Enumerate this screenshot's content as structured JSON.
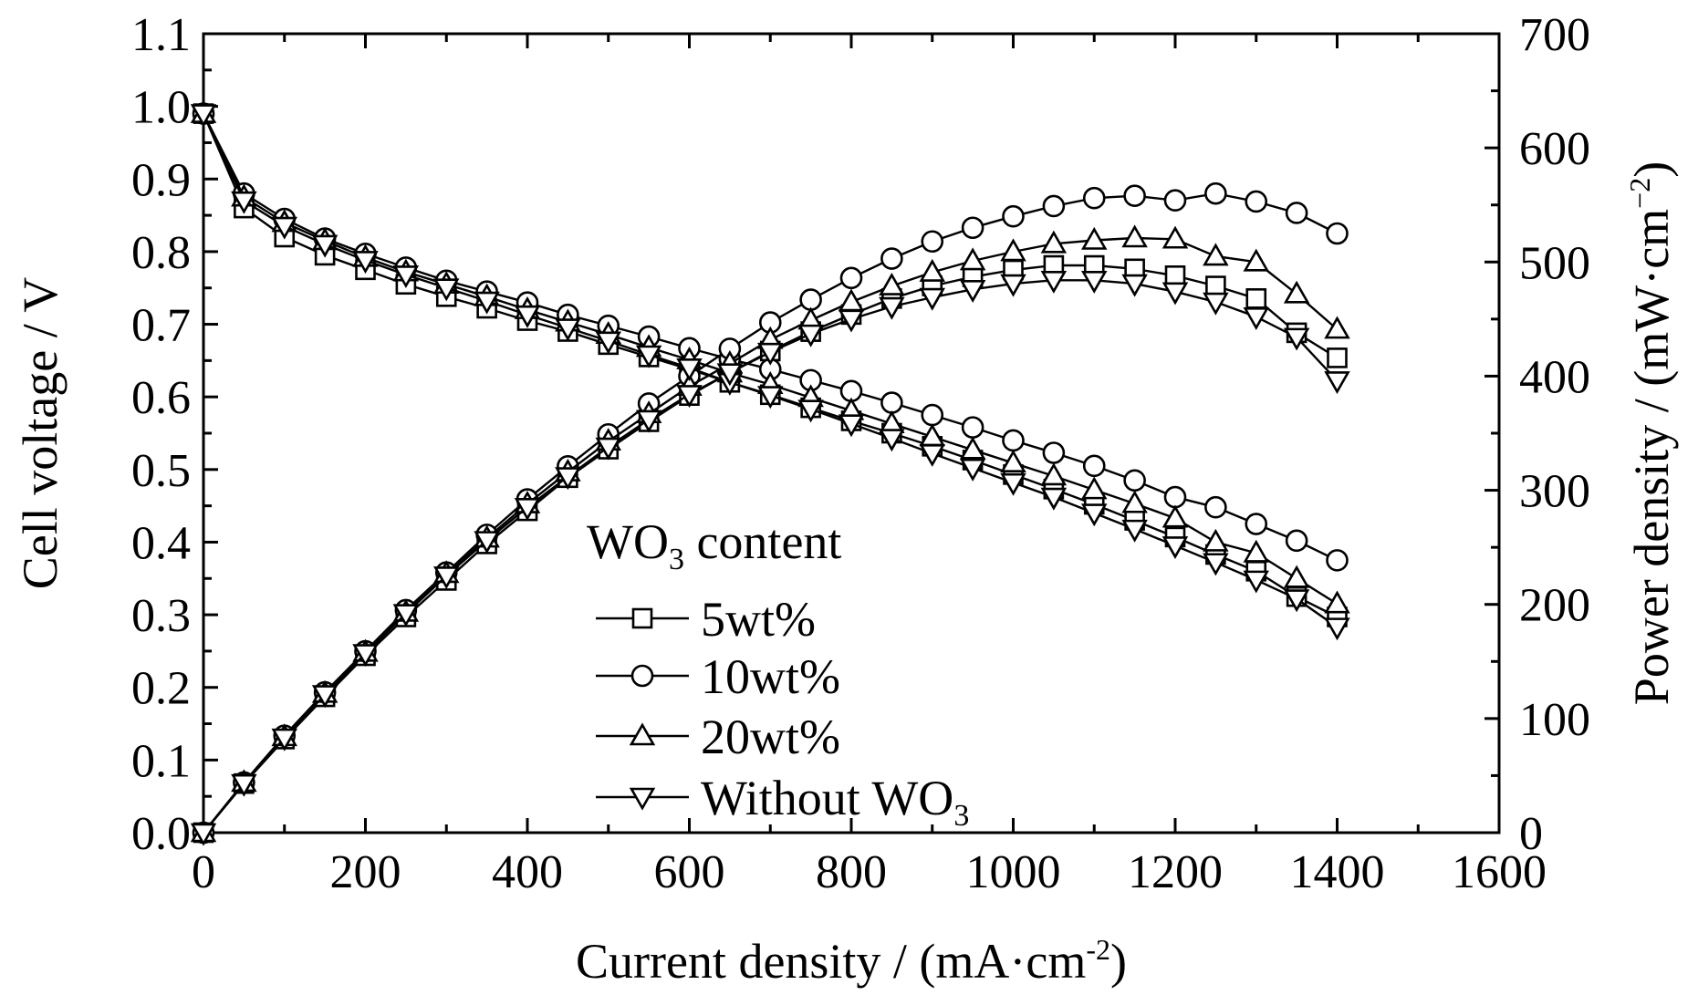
{
  "chart_data": {
    "type": "line",
    "xlabel": "Current density / (mA·cm",
    "xlabel_sup": "-2",
    "xlabel_end": ")",
    "ylabel_left": "Cell voltage / V",
    "ylabel_right": "Power density / (mW·cm",
    "ylabel_right_sup": "−2",
    "ylabel_right_end": ")",
    "xlim": [
      0,
      1600
    ],
    "ylim_left": [
      0.0,
      1.1
    ],
    "ylim_right": [
      0,
      700
    ],
    "x_ticks": [
      0,
      200,
      400,
      600,
      800,
      1000,
      1200,
      1400,
      1600
    ],
    "x_tick_labels": [
      "0",
      "200",
      "400",
      "600",
      "800",
      "1000",
      "1200",
      "1400",
      "1600"
    ],
    "y_left_ticks": [
      0.0,
      0.1,
      0.2,
      0.3,
      0.4,
      0.5,
      0.6,
      0.7,
      0.8,
      0.9,
      1.0,
      1.1
    ],
    "y_left_tick_labels": [
      "0.0",
      "0.1",
      "0.2",
      "0.3",
      "0.4",
      "0.5",
      "0.6",
      "0.7",
      "0.8",
      "0.9",
      "1.0",
      "1.1"
    ],
    "y_right_ticks": [
      0,
      100,
      200,
      300,
      400,
      500,
      600,
      700
    ],
    "y_right_tick_labels": [
      "0",
      "100",
      "200",
      "300",
      "400",
      "500",
      "600",
      "700"
    ],
    "legend_title": "WO",
    "legend_title_sub": "3",
    "legend_title_end": " content",
    "legend_position": "center",
    "grid": false,
    "x": [
      0,
      50,
      100,
      150,
      200,
      250,
      300,
      350,
      400,
      450,
      500,
      550,
      600,
      650,
      700,
      750,
      800,
      850,
      900,
      950,
      1000,
      1050,
      1100,
      1150,
      1200,
      1250,
      1300,
      1350,
      1400
    ],
    "series": [
      {
        "name": "5wt%",
        "marker": "square",
        "voltage": [
          0.99,
          0.86,
          0.82,
          0.795,
          0.775,
          0.755,
          0.738,
          0.722,
          0.705,
          0.69,
          0.672,
          0.655,
          0.638,
          0.62,
          0.603,
          0.585,
          0.567,
          0.55,
          0.532,
          0.513,
          0.493,
          0.473,
          0.452,
          0.43,
          0.407,
          0.383,
          0.36,
          0.325,
          0.297
        ],
        "power": [
          0,
          43,
          82,
          119,
          155,
          189,
          221,
          253,
          282,
          311,
          336,
          360,
          383,
          403,
          422,
          439,
          454,
          468,
          479,
          487,
          493,
          497,
          497,
          494,
          488,
          479,
          468,
          438,
          416
        ]
      },
      {
        "name": "10wt%",
        "marker": "circle",
        "voltage": [
          0.99,
          0.88,
          0.845,
          0.818,
          0.797,
          0.778,
          0.76,
          0.745,
          0.73,
          0.713,
          0.698,
          0.683,
          0.667,
          0.652,
          0.638,
          0.623,
          0.608,
          0.592,
          0.575,
          0.558,
          0.54,
          0.523,
          0.505,
          0.485,
          0.462,
          0.448,
          0.425,
          0.402,
          0.375
        ],
        "power": [
          0,
          44,
          85,
          123,
          159,
          195,
          228,
          261,
          292,
          321,
          349,
          376,
          400,
          424,
          447,
          467,
          486,
          503,
          518,
          530,
          540,
          549,
          556,
          558,
          554,
          560,
          553,
          543,
          525
        ]
      },
      {
        "name": "20wt%",
        "marker": "triangle-up",
        "voltage": [
          0.99,
          0.875,
          0.84,
          0.815,
          0.792,
          0.772,
          0.755,
          0.738,
          0.72,
          0.703,
          0.686,
          0.668,
          0.651,
          0.633,
          0.617,
          0.599,
          0.581,
          0.563,
          0.545,
          0.527,
          0.509,
          0.491,
          0.472,
          0.453,
          0.433,
          0.4,
          0.385,
          0.35,
          0.315
        ],
        "power": [
          0,
          44,
          84,
          122,
          158,
          193,
          227,
          258,
          288,
          316,
          343,
          367,
          391,
          411,
          432,
          449,
          465,
          479,
          491,
          501,
          509,
          516,
          519,
          521,
          520,
          505,
          500,
          472,
          441
        ]
      },
      {
        "name": "Without WO",
        "name_sub": "3",
        "marker": "triangle-down",
        "voltage": [
          0.99,
          0.87,
          0.835,
          0.81,
          0.788,
          0.768,
          0.75,
          0.732,
          0.713,
          0.695,
          0.677,
          0.658,
          0.64,
          0.62,
          0.602,
          0.583,
          0.563,
          0.543,
          0.522,
          0.502,
          0.482,
          0.462,
          0.44,
          0.418,
          0.395,
          0.372,
          0.348,
          0.322,
          0.283
        ],
        "power": [
          0,
          43,
          83,
          121,
          157,
          192,
          225,
          256,
          285,
          312,
          338,
          362,
          384,
          403,
          421,
          437,
          450,
          461,
          469,
          476,
          481,
          484,
          484,
          481,
          474,
          465,
          452,
          434,
          396
        ]
      }
    ]
  }
}
